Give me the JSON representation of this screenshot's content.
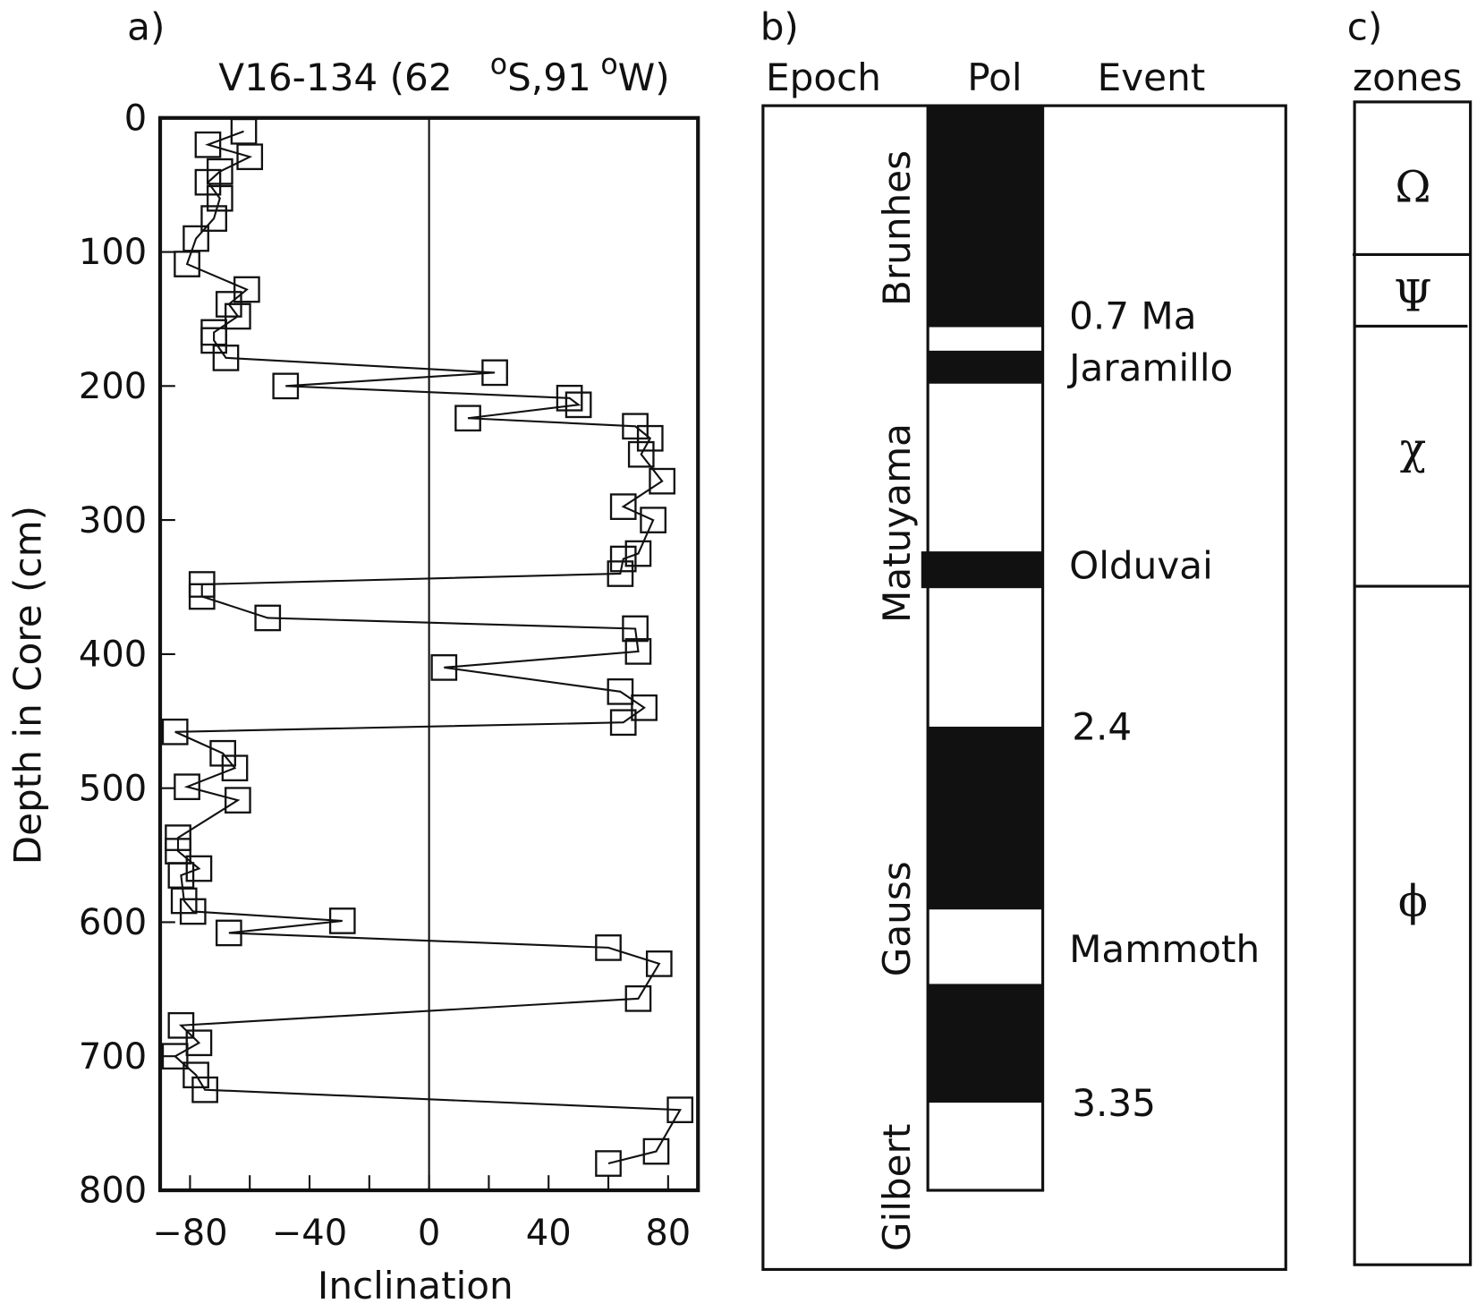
{
  "panel_a": {
    "label": "a)",
    "title_parts": [
      "V16-134 (62",
      "o",
      "S,91",
      "o",
      "W)"
    ]
  },
  "panel_b": {
    "label": "b)",
    "headers": {
      "epoch": "Epoch",
      "pol": "Pol",
      "event": "Event"
    },
    "epochs": [
      "Brunhes",
      "Matuyama",
      "Gauss",
      "Gilbert"
    ],
    "events": [
      "0.7 Ma",
      "Jaramillo",
      "Olduvai",
      "2.4",
      "Mammoth",
      "3.35"
    ],
    "polarity_colors": {
      "normal": "#111111",
      "reversed": "#ffffff"
    }
  },
  "panel_c": {
    "label": "c)",
    "header": "zones",
    "zones": [
      "Ω",
      "Ψ",
      "χ",
      "ϕ"
    ]
  },
  "chart_data": {
    "type": "line",
    "marker": "open-square",
    "title": "V16-134 (62 oS,91 oW)",
    "xlabel": "Inclination",
    "ylabel": "Depth in Core (cm)",
    "xlim": [
      -90,
      90
    ],
    "ylim": [
      800,
      0
    ],
    "xticks": [
      -80,
      -40,
      0,
      40,
      80
    ],
    "xtick_labels": [
      "−80",
      "−40",
      "0",
      "40",
      "80"
    ],
    "yticks": [
      0,
      100,
      200,
      300,
      400,
      500,
      600,
      700,
      800
    ],
    "ytick_labels": [
      "0",
      "100",
      "200",
      "300",
      "400",
      "500",
      "600",
      "700",
      "800"
    ],
    "grid": false,
    "reference_line_x": 0,
    "points": [
      [
        -62,
        10
      ],
      [
        -74,
        20
      ],
      [
        -60,
        29
      ],
      [
        -70,
        40
      ],
      [
        -74,
        48
      ],
      [
        -70,
        60
      ],
      [
        -72,
        75
      ],
      [
        -78,
        90
      ],
      [
        -81,
        109
      ],
      [
        -61,
        128
      ],
      [
        -67,
        139
      ],
      [
        -64,
        148
      ],
      [
        -72,
        160
      ],
      [
        -72,
        166
      ],
      [
        -68,
        179
      ],
      [
        22,
        190
      ],
      [
        -48,
        200
      ],
      [
        47,
        209
      ],
      [
        50,
        214
      ],
      [
        13,
        224
      ],
      [
        69,
        230
      ],
      [
        74,
        239
      ],
      [
        71,
        251
      ],
      [
        78,
        271
      ],
      [
        65,
        290
      ],
      [
        75,
        300
      ],
      [
        70,
        325
      ],
      [
        65,
        329
      ],
      [
        64,
        340
      ],
      [
        -76,
        348
      ],
      [
        -76,
        357
      ],
      [
        -54,
        373
      ],
      [
        69,
        381
      ],
      [
        70,
        398
      ],
      [
        5,
        410
      ],
      [
        64,
        428
      ],
      [
        72,
        440
      ],
      [
        65,
        451
      ],
      [
        -85,
        458
      ],
      [
        -69,
        474
      ],
      [
        -65,
        485
      ],
      [
        -81,
        499
      ],
      [
        -64,
        509
      ],
      [
        -84,
        537
      ],
      [
        -84,
        547
      ],
      [
        -77,
        560
      ],
      [
        -83,
        565
      ],
      [
        -82,
        584
      ],
      [
        -79,
        592
      ],
      [
        -29,
        599
      ],
      [
        -67,
        608
      ],
      [
        60,
        619
      ],
      [
        77,
        631
      ],
      [
        70,
        657
      ],
      [
        -83,
        677
      ],
      [
        -77,
        690
      ],
      [
        -85,
        700
      ],
      [
        -78,
        714
      ],
      [
        -75,
        725
      ],
      [
        84,
        740
      ],
      [
        76,
        771
      ],
      [
        60,
        780
      ]
    ]
  }
}
